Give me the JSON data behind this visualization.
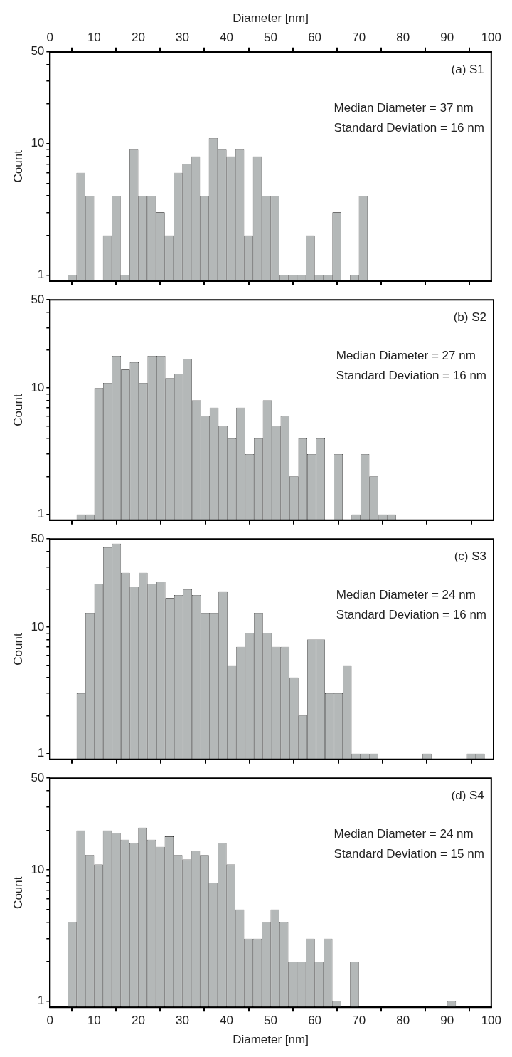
{
  "chart_data": [
    {
      "type": "histogram",
      "annotations": [
        "(a) S1",
        "Median Diameter = 37 nm",
        "Standard Deviation = 16 nm"
      ],
      "ylabel": "Count",
      "x2label": "Diameter [nm]",
      "color": "#b4b8b8",
      "log": true,
      "tick_labels": "y",
      "xlim": [
        0,
        100
      ],
      "xticks": [
        0,
        10,
        20,
        30,
        40,
        50,
        60,
        70,
        80,
        90,
        100
      ],
      "bins": [
        4,
        6,
        8,
        10,
        12,
        14,
        16,
        18,
        20,
        22,
        24,
        26,
        28,
        30,
        32,
        34,
        36,
        38,
        40,
        42,
        44,
        46,
        48,
        50,
        52,
        54,
        56,
        58,
        60,
        62,
        64,
        66,
        68,
        70,
        72
      ],
      "values": [
        1,
        6,
        4,
        null,
        2,
        4,
        1,
        9,
        4,
        4,
        3,
        2,
        6,
        7,
        8,
        4,
        11,
        9,
        8,
        9,
        2,
        8,
        4,
        4,
        1,
        1,
        1,
        2,
        1,
        1,
        3,
        null,
        1,
        4
      ],
      "x2lim": [
        0,
        100
      ],
      "x2ticks": [
        0,
        10,
        20,
        30,
        40,
        50,
        60,
        70,
        80,
        90,
        100
      ],
      "ylim": [
        0.9,
        50
      ],
      "yticks": [
        1,
        {
          "value": 2,
          "label": null
        },
        {
          "value": 3,
          "label": null
        },
        {
          "value": 4,
          "label": null
        },
        {
          "value": 5,
          "label": null
        },
        {
          "value": 6,
          "label": null
        },
        {
          "value": 7,
          "label": null
        },
        {
          "value": 8,
          "label": null
        },
        {
          "value": 9,
          "label": null
        },
        10,
        {
          "value": 20,
          "label": null
        },
        {
          "value": 30,
          "label": null
        },
        {
          "value": 40,
          "label": null
        },
        50
      ]
    },
    {
      "type": "histogram",
      "annotations": [
        "(b) S2",
        "Median Diameter = 27 nm",
        "Standard Deviation = 16 nm"
      ],
      "ylabel": "Count",
      "color": "#b4b8b8",
      "log": true,
      "tick_labels": "y",
      "bins": [
        6,
        8,
        10,
        12,
        14,
        16,
        18,
        20,
        22,
        24,
        26,
        28,
        30,
        32,
        34,
        36,
        38,
        40,
        42,
        44,
        46,
        48,
        50,
        52,
        54,
        56,
        58,
        60,
        62,
        64,
        66,
        68,
        70,
        72,
        74,
        76,
        78
      ],
      "values": [
        1,
        1,
        10,
        11,
        18,
        14,
        16,
        11,
        18,
        18,
        12,
        13,
        17,
        8,
        6,
        7,
        5,
        4,
        7,
        3,
        4,
        8,
        5,
        6,
        2,
        4,
        3,
        4,
        null,
        3,
        null,
        1,
        3,
        2,
        1,
        1
      ],
      "xlim": [
        0,
        100
      ],
      "xticks": [
        0,
        10,
        20,
        30,
        40,
        50,
        60,
        70,
        80,
        90,
        100
      ],
      "ylim": [
        0.9,
        50
      ],
      "yticks": [
        1,
        {
          "value": 2,
          "label": null
        },
        {
          "value": 3,
          "label": null
        },
        {
          "value": 4,
          "label": null
        },
        {
          "value": 5,
          "label": null
        },
        {
          "value": 6,
          "label": null
        },
        {
          "value": 7,
          "label": null
        },
        {
          "value": 8,
          "label": null
        },
        {
          "value": 9,
          "label": null
        },
        10,
        {
          "value": 20,
          "label": null
        },
        {
          "value": 30,
          "label": null
        },
        {
          "value": 40,
          "label": null
        },
        50
      ]
    },
    {
      "type": "histogram",
      "annotations": [
        "(c) S3",
        "Median Diameter = 24 nm",
        "Standard Deviation = 16 nm"
      ],
      "ylabel": "Count",
      "color": "#b4b8b8",
      "log": true,
      "tick_labels": "y",
      "bins": [
        6,
        8,
        10,
        12,
        14,
        16,
        18,
        20,
        22,
        24,
        26,
        28,
        30,
        32,
        34,
        36,
        38,
        40,
        42,
        44,
        46,
        48,
        50,
        52,
        54,
        56,
        58,
        60,
        62,
        64,
        66,
        68,
        70,
        72,
        74,
        76,
        78,
        80,
        82,
        84,
        86,
        88,
        90,
        92,
        94,
        96,
        98
      ],
      "values": [
        3,
        13,
        22,
        43,
        46,
        27,
        21,
        27,
        22,
        23,
        17,
        18,
        20,
        18,
        13,
        13,
        19,
        5,
        7,
        9,
        13,
        9,
        7,
        7,
        4,
        2,
        8,
        8,
        3,
        3,
        5,
        1,
        1,
        1,
        null,
        null,
        null,
        null,
        null,
        1,
        null,
        null,
        null,
        null,
        1,
        1
      ],
      "xlim": [
        0,
        100
      ],
      "xticks": [
        0,
        10,
        20,
        30,
        40,
        50,
        60,
        70,
        80,
        90,
        100
      ],
      "ylim": [
        0.9,
        50
      ],
      "yticks": [
        1,
        {
          "value": 2,
          "label": null
        },
        {
          "value": 3,
          "label": null
        },
        {
          "value": 4,
          "label": null
        },
        {
          "value": 5,
          "label": null
        },
        {
          "value": 6,
          "label": null
        },
        {
          "value": 7,
          "label": null
        },
        {
          "value": 8,
          "label": null
        },
        {
          "value": 9,
          "label": null
        },
        10,
        {
          "value": 20,
          "label": null
        },
        {
          "value": 30,
          "label": null
        },
        {
          "value": 40,
          "label": null
        },
        50
      ]
    },
    {
      "type": "histogram",
      "annotations": [
        "(d) S4",
        "Median Diameter = 24 nm",
        "Standard Deviation = 15 nm"
      ],
      "ylabel": "Count",
      "xlabel": "Diameter [nm]",
      "color": "#b4b8b8",
      "log": true,
      "bins": [
        4,
        6,
        8,
        10,
        12,
        14,
        16,
        18,
        20,
        22,
        24,
        26,
        28,
        30,
        32,
        34,
        36,
        38,
        40,
        42,
        44,
        46,
        48,
        50,
        52,
        54,
        56,
        58,
        60,
        62,
        64,
        66,
        68,
        70,
        72,
        74,
        76,
        78,
        80,
        82,
        84,
        86,
        88,
        90,
        92
      ],
      "values": [
        4,
        20,
        13,
        11,
        20,
        19,
        17,
        16,
        21,
        17,
        15,
        18,
        13,
        12,
        14,
        13,
        8,
        16,
        11,
        5,
        3,
        3,
        4,
        5,
        4,
        2,
        2,
        3,
        2,
        3,
        1,
        null,
        2,
        null,
        null,
        null,
        null,
        null,
        null,
        null,
        null,
        null,
        null,
        1
      ],
      "xlim": [
        0,
        100
      ],
      "xticks": [
        0,
        10,
        20,
        30,
        40,
        50,
        60,
        70,
        80,
        90,
        100
      ],
      "ylim": [
        0.9,
        50
      ],
      "yticks": [
        1,
        {
          "value": 2,
          "label": null
        },
        {
          "value": 3,
          "label": null
        },
        {
          "value": 4,
          "label": null
        },
        {
          "value": 5,
          "label": null
        },
        {
          "value": 6,
          "label": null
        },
        {
          "value": 7,
          "label": null
        },
        {
          "value": 8,
          "label": null
        },
        {
          "value": 9,
          "label": null
        },
        10,
        {
          "value": 20,
          "label": null
        },
        {
          "value": 30,
          "label": null
        },
        {
          "value": 40,
          "label": null
        },
        50
      ]
    }
  ]
}
